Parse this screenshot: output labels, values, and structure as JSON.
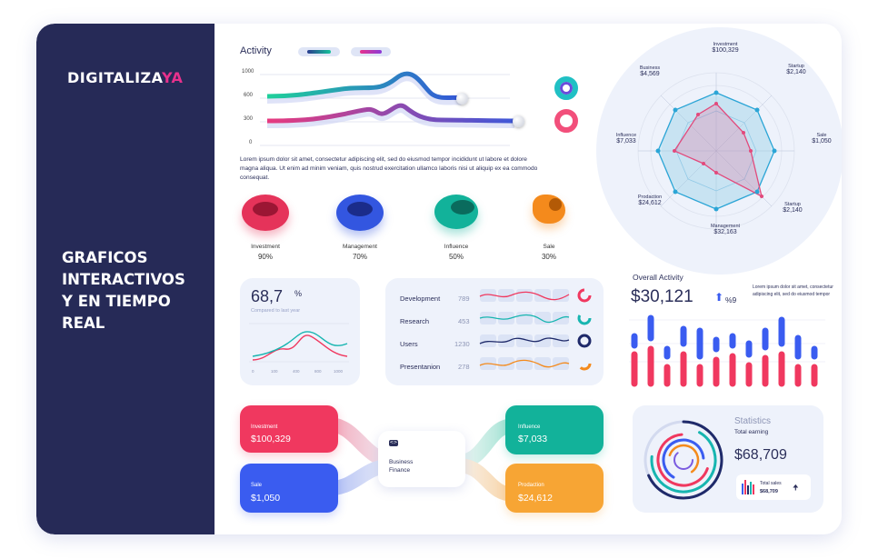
{
  "brand": {
    "name": "DIGITALIZA",
    "accent": "YA"
  },
  "sidebar": {
    "headline": "GRAFICOS\nINTERACTIVOS\nY EN TIEMPO\n REAL"
  },
  "activity": {
    "title": "Activity",
    "y_ticks": [
      "1000",
      "600",
      "300",
      "0"
    ],
    "paragraph": "Lorem ipsum dolor sit amet, consectetur adipiscing elit, sed do eiusmod tempor incididunt ut labore et dolore magna aliqua. Ut enim ad minim veniam, quis nostrud exercitation ullamco laboris nisi ut aliquip ex ea commodo consequat."
  },
  "rings": [
    {
      "label": "Investment",
      "value": "90%",
      "color": "#e5335a"
    },
    {
      "label": "Management",
      "value": "70%",
      "color": "#3356e0"
    },
    {
      "label": "Influence",
      "value": "50%",
      "color": "#12b29a"
    },
    {
      "label": "Sale",
      "value": "30%",
      "color": "#f48a1c"
    }
  ],
  "metric_card": {
    "value": "68,7",
    "unit": "%",
    "caption": "Compared to last year",
    "x_ticks": [
      "0",
      "100",
      "400",
      "800",
      "1000"
    ]
  },
  "list_card": {
    "rows": [
      {
        "label": "Development",
        "value": "789"
      },
      {
        "label": "Research",
        "value": "453"
      },
      {
        "label": "Users",
        "value": "1230"
      },
      {
        "label": "Presentanion",
        "value": "278"
      }
    ]
  },
  "radar": {
    "labels": [
      {
        "name": "Investment",
        "value": "$100,329"
      },
      {
        "name": "Startup",
        "value": "$2,140"
      },
      {
        "name": "Sale",
        "value": "$1,050"
      },
      {
        "name": "Startup",
        "value": "$2,140"
      },
      {
        "name": "Management",
        "value": "$32,163"
      },
      {
        "name": "Prodaction",
        "value": "$24,612"
      },
      {
        "name": "Influence",
        "value": "$7,033"
      },
      {
        "name": "Business",
        "value": "$4,569"
      }
    ]
  },
  "overall": {
    "title": "Overall Activity",
    "value": "$30,121",
    "change": "%9",
    "note": "Lorem ipsum dolor sit amet, consectetur adipiscing elit, sed do eiusmod tempor"
  },
  "flow": {
    "investment": {
      "label": "Investment",
      "value": "$100,329"
    },
    "sale": {
      "label": "Sale",
      "value": "$1,050"
    },
    "influence": {
      "label": "Influence",
      "value": "$7,033"
    },
    "production": {
      "label": "Prodaction",
      "value": "$24,612"
    },
    "center": "Business\nFinance"
  },
  "statistics": {
    "title": "Statistics",
    "subtitle": "Total earning",
    "value": "$68,709",
    "mini_label": "Total sales",
    "mini_value": "$68,709"
  },
  "colors": {
    "navy": "#262a57",
    "pink": "#e7318c",
    "red": "#f0385f",
    "blue": "#3a5cf0",
    "green": "#12b29a",
    "orange": "#f7a534",
    "teal": "#20b6c8"
  }
}
